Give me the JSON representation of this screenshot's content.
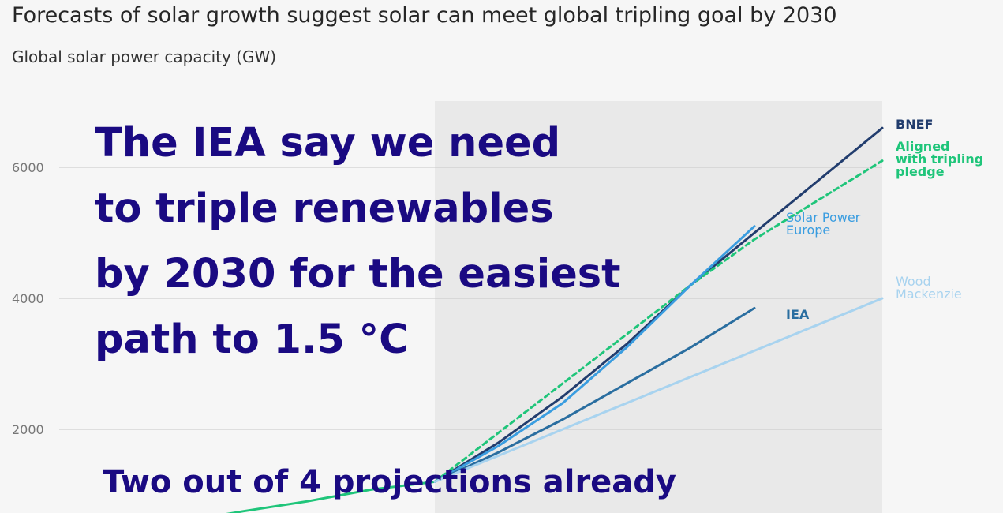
{
  "title": "Forecasts of solar growth suggest solar can meet global tripling goal by 2030",
  "subtitle": "Global solar power capacity (GW)",
  "overlay_lines": [
    "The IEA say we need",
    "to triple renewables",
    "by 2030 for the easiest",
    "path to 1.5 °C"
  ],
  "bottom_text": "Two out of 4 projections already",
  "chart_data": {
    "type": "line",
    "ylabel": "",
    "yticks": [
      2000,
      4000,
      6000
    ],
    "ylim": [
      0,
      7000
    ],
    "xlim": [
      2019,
      2030
    ],
    "grid": true,
    "shaded_region": {
      "x_start": 2023,
      "x_end": 2030
    },
    "series": [
      {
        "name": "",
        "color": "#1fc57a",
        "dashed": false,
        "x": [
          2018.5,
          2020,
          2021,
          2022,
          2023
        ],
        "y": [
          500,
          750,
          900,
          1080,
          1200
        ]
      },
      {
        "name": "BNEF",
        "color": "#223d6e",
        "dashed": false,
        "x": [
          2023,
          2024,
          2025,
          2026,
          2027,
          2028,
          2029,
          2030
        ],
        "y": [
          1200,
          1800,
          2500,
          3300,
          4200,
          5000,
          5800,
          6600
        ]
      },
      {
        "name": "Aligned with tripling pledge",
        "color": "#1fc57a",
        "dashed": true,
        "x": [
          2023,
          2024,
          2025,
          2026,
          2027,
          2028,
          2029,
          2030
        ],
        "y": [
          1200,
          1950,
          2700,
          3450,
          4200,
          4900,
          5500,
          6100
        ]
      },
      {
        "name": "Solar Power Europe",
        "color": "#3a9de0",
        "dashed": false,
        "x": [
          2023,
          2024,
          2025,
          2026,
          2027,
          2028
        ],
        "y": [
          1200,
          1750,
          2400,
          3250,
          4200,
          5100
        ]
      },
      {
        "name": "IEA",
        "color": "#2a6ea0",
        "dashed": false,
        "x": [
          2023,
          2024,
          2025,
          2026,
          2027,
          2028
        ],
        "y": [
          1200,
          1650,
          2150,
          2700,
          3250,
          3850
        ]
      },
      {
        "name": "Wood Mackenzie",
        "color": "#a8d3ef",
        "dashed": false,
        "x": [
          2023,
          2024,
          2025,
          2026,
          2027,
          2028,
          2029,
          2030
        ],
        "y": [
          1200,
          1600,
          2000,
          2400,
          2800,
          3200,
          3600,
          4000
        ]
      }
    ],
    "labels": {
      "BNEF": "BNEF",
      "Aligned": [
        "Aligned",
        "with tripling",
        "pledge"
      ],
      "SPE": [
        "Solar Power",
        "Europe"
      ],
      "IEA": "IEA",
      "WM": [
        "Wood",
        "Mackenzie"
      ]
    },
    "label_colors": {
      "BNEF": "#223d6e",
      "Aligned": "#1fc57a",
      "SPE": "#3a9de0",
      "IEA": "#2a6ea0",
      "WM": "#a8d3ef"
    }
  }
}
